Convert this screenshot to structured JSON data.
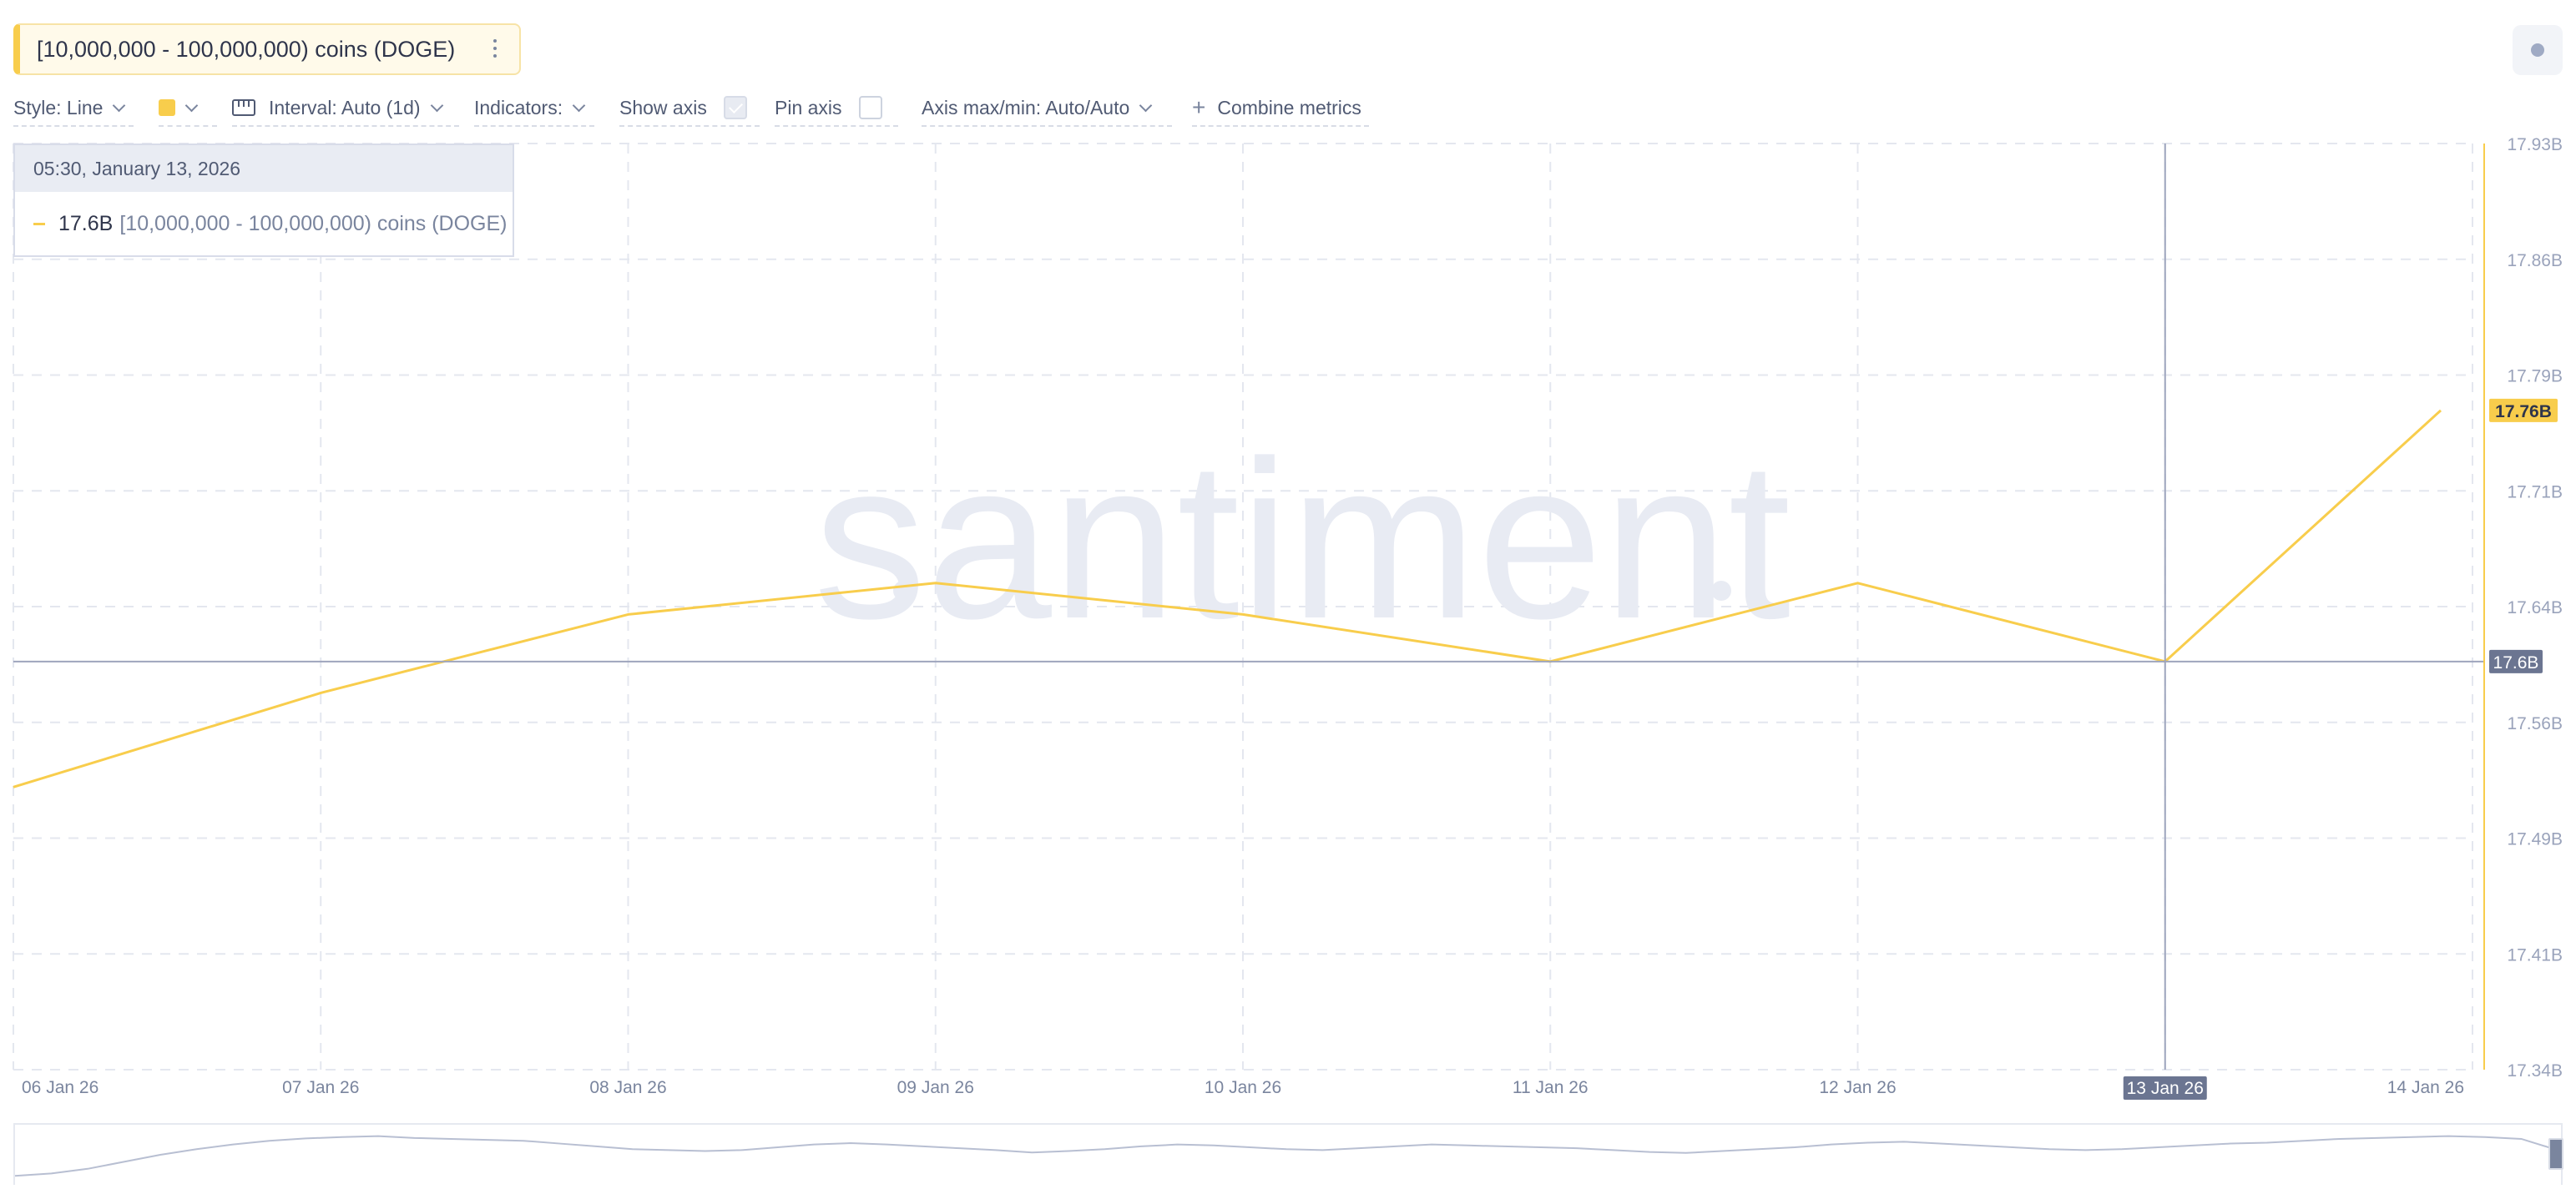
{
  "metric": {
    "name": "[10,000,000 - 100,000,000) coins (DOGE)",
    "menu_icon": "more-vertical-icon"
  },
  "toolbar": {
    "style": "Style: Line",
    "interval": "Interval: Auto (1d)",
    "indicators": "Indicators:",
    "show_axis": "Show axis",
    "show_axis_checked": true,
    "pin_axis": "Pin axis",
    "pin_axis_checked": false,
    "axis_maxmin": "Axis max/min: Auto/Auto",
    "combine": "Combine metrics",
    "color": "#f8cd4c"
  },
  "tooltip": {
    "date": "05:30, January 13, 2026",
    "value": "17.6B",
    "name": "[10,000,000 - 100,000,000) coins (DOGE)"
  },
  "watermark": "santiment",
  "colors": {
    "line": "#f8cd4c",
    "crosshair": "#9ea5bd",
    "label_bg": "#6b7591",
    "grid": "#e4e7ef",
    "watermark": "#e8ebf3"
  },
  "chart_data": {
    "type": "line",
    "x": [
      "06 Jan 26",
      "07 Jan 26",
      "08 Jan 26",
      "09 Jan 26",
      "10 Jan 26",
      "11 Jan 26",
      "12 Jan 26",
      "13 Jan 26",
      "14 Jan 26"
    ],
    "series": [
      {
        "name": "[10,000,000 - 100,000,000) coins (DOGE)",
        "color": "#f8cd4c",
        "values": [
          17.52,
          17.58,
          17.63,
          17.65,
          17.63,
          17.6,
          17.65,
          17.6,
          17.76
        ]
      }
    ],
    "y_ticks": [
      "17.93B",
      "17.86B",
      "17.79B",
      "17.71B",
      "17.64B",
      "17.56B",
      "17.49B",
      "17.41B",
      "17.34B"
    ],
    "ylim": [
      17.34,
      17.93
    ],
    "y_unit": "B",
    "grid": true,
    "last_value_label": "17.76B",
    "crosshair": {
      "x_label": "13 Jan 26",
      "y_label": "17.6B",
      "value": 17.6
    }
  },
  "minimap": {
    "values": [
      0.05,
      0.1,
      0.2,
      0.35,
      0.5,
      0.62,
      0.72,
      0.8,
      0.85,
      0.88,
      0.9,
      0.86,
      0.84,
      0.82,
      0.8,
      0.74,
      0.68,
      0.62,
      0.6,
      0.58,
      0.6,
      0.66,
      0.72,
      0.75,
      0.72,
      0.68,
      0.64,
      0.6,
      0.55,
      0.58,
      0.62,
      0.68,
      0.72,
      0.7,
      0.66,
      0.62,
      0.6,
      0.64,
      0.68,
      0.72,
      0.7,
      0.68,
      0.66,
      0.64,
      0.6,
      0.56,
      0.54,
      0.58,
      0.62,
      0.66,
      0.72,
      0.76,
      0.78,
      0.74,
      0.7,
      0.66,
      0.62,
      0.6,
      0.62,
      0.66,
      0.7,
      0.74,
      0.76,
      0.8,
      0.84,
      0.86,
      0.88,
      0.9,
      0.88,
      0.84,
      0.6
    ]
  }
}
